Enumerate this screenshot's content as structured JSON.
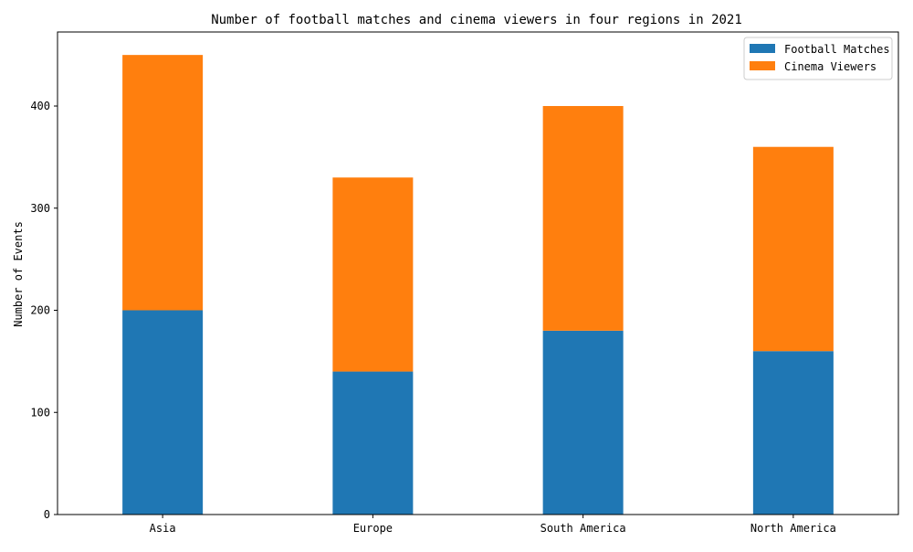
{
  "chart_data": {
    "type": "bar",
    "stacked": true,
    "title": "Number of football matches and cinema viewers in four regions in 2021",
    "xlabel": "",
    "ylabel": "Number of Events",
    "categories": [
      "Asia",
      "Europe",
      "South America",
      "North America"
    ],
    "series": [
      {
        "name": "Football Matches",
        "color": "#1f77b4",
        "values": [
          200,
          140,
          180,
          160
        ]
      },
      {
        "name": "Cinema Viewers",
        "color": "#ff7f0e",
        "values": [
          250,
          190,
          220,
          200
        ]
      }
    ],
    "ylim": [
      0,
      472.5
    ],
    "yticks": [
      0,
      100,
      200,
      300,
      400
    ],
    "grid": false,
    "legend_position": "top-right"
  }
}
